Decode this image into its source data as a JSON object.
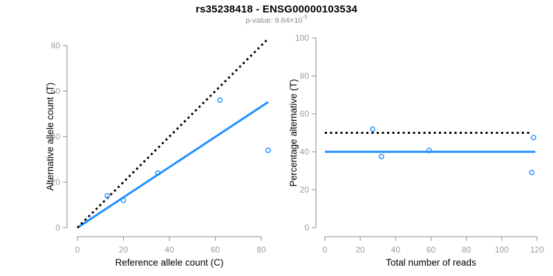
{
  "header": {
    "title": "rs35238418 - ENSG00000103534",
    "subtitle_prefix": "p-value: 9.64×10",
    "subtitle_exponent": "-5"
  },
  "colors": {
    "accent_blue": "#1E90FF",
    "identity_black": "#000000",
    "axis_line": "#8a8a8a",
    "tick_label": "#9b9b9b",
    "axis_title": "#000000",
    "title_text": "#000000",
    "subtitle_text": "#8a8a8a"
  },
  "chart_data": [
    {
      "type": "scatter",
      "name": "allele-counts-scatter",
      "xlabel": "Reference allele count (C)",
      "ylabel": "Alternative allele count (T)",
      "xlim": [
        0,
        80
      ],
      "ylim": [
        0,
        80
      ],
      "xticks": [
        0,
        20,
        40,
        60,
        80
      ],
      "yticks": [
        0,
        20,
        40,
        60,
        80
      ],
      "grid": false,
      "legend": "none",
      "points": [
        [
          13,
          14
        ],
        [
          20,
          12
        ],
        [
          35,
          24
        ],
        [
          62,
          56
        ],
        [
          83,
          34
        ]
      ],
      "lines": [
        {
          "name": "fitted-proportion-line",
          "style": "solid",
          "color": "#1E90FF",
          "x1": 0,
          "y1": 0,
          "x2": 83,
          "y2": 55.2
        },
        {
          "name": "identity-line",
          "style": "dotted",
          "color": "#000000",
          "x1": 0,
          "y1": 0,
          "x2": 82.5,
          "y2": 82.5
        }
      ]
    },
    {
      "type": "scatter",
      "name": "percentage-alternative-scatter",
      "xlabel": "Total number of reads",
      "ylabel": "Percentage alternative (T)",
      "xlim": [
        0,
        120
      ],
      "ylim": [
        0,
        100
      ],
      "xticks": [
        0,
        20,
        40,
        60,
        80,
        100,
        120
      ],
      "yticks": [
        0,
        20,
        40,
        60,
        80,
        100
      ],
      "grid": false,
      "legend": "none",
      "points": [
        [
          27,
          51.9
        ],
        [
          32,
          37.5
        ],
        [
          59,
          40.7
        ],
        [
          118,
          47.5
        ],
        [
          117,
          29.1
        ]
      ],
      "lines": [
        {
          "name": "mean-percentage-line",
          "style": "solid",
          "color": "#1E90FF",
          "x1": 0,
          "y1": 40,
          "x2": 119,
          "y2": 40
        },
        {
          "name": "expected-fifty-percent-line",
          "style": "dotted",
          "color": "#000000",
          "x1": 0,
          "y1": 50,
          "x2": 116,
          "y2": 50
        }
      ]
    }
  ]
}
